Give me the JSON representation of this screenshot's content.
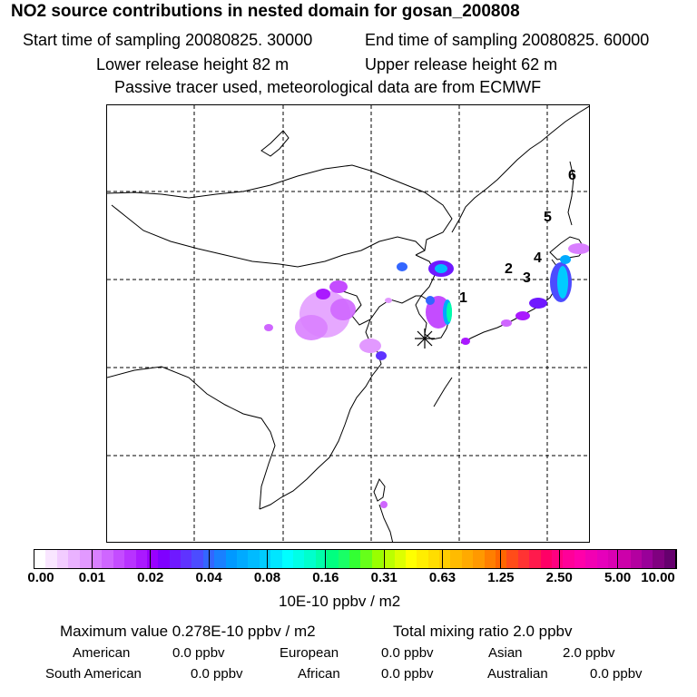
{
  "title": "NO2 source contributions in nested domain for gosan_200808",
  "header": {
    "start_time": "Start time of sampling 20080825. 30000",
    "end_time": "End time of sampling 20080825. 60000",
    "lower_release": "Lower release height   82 m",
    "upper_release": "Upper release height   62 m",
    "note": "Passive tracer used, meteorological data are from ECMWF"
  },
  "map": {
    "receptor_marker": "*",
    "labels": [
      {
        "text": "1",
        "color": "#000000"
      },
      {
        "text": "2",
        "color": "#000000"
      },
      {
        "text": "3",
        "color": "#000000"
      },
      {
        "text": "4",
        "color": "#000000"
      },
      {
        "text": "5",
        "color": "#000000"
      },
      {
        "text": "6",
        "color": "#000000"
      }
    ]
  },
  "colorbar": {
    "ticks": [
      "0.00",
      "0.01",
      "0.02",
      "0.04",
      "0.08",
      "0.16",
      "0.31",
      "0.63",
      "1.25",
      "2.50",
      "5.00",
      "10.00"
    ],
    "colors": [
      "#ffffff",
      "#f9e6ff",
      "#f2ccff",
      "#eab2ff",
      "#e299ff",
      "#d97fff",
      "#cf66ff",
      "#c44cff",
      "#b833ff",
      "#aa19ff",
      "#9900ff",
      "#7f00ff",
      "#6f19ff",
      "#5f33ff",
      "#4c4cff",
      "#3366ff",
      "#1980ff",
      "#0099ff",
      "#00aaff",
      "#00bbff",
      "#00ccff",
      "#00e6ff",
      "#00ffff",
      "#00ffe6",
      "#00ffcc",
      "#00ffaa",
      "#00ff80",
      "#19ff66",
      "#33ff33",
      "#66ff19",
      "#99ff00",
      "#bbff00",
      "#ddff00",
      "#ffff00",
      "#ffee00",
      "#ffdd00",
      "#ffcc00",
      "#ffbb00",
      "#ffaa00",
      "#ff9900",
      "#ff7f00",
      "#ff6600",
      "#ff4c19",
      "#ff3333",
      "#ff1a4c",
      "#ff0066",
      "#ff0080",
      "#ff0099",
      "#ff00aa",
      "#f200b3",
      "#e600bb",
      "#d900b3",
      "#cc00aa",
      "#b300a0",
      "#990099",
      "#800080",
      "#66006e"
    ],
    "units": "10E-10 ppbv / m2"
  },
  "stats": {
    "max_value": "Maximum value  0.278E-10 ppbv / m2",
    "total_mixing": "Total mixing ratio       2.0 ppbv",
    "regions": [
      {
        "name": "American",
        "value": "0.0 ppbv"
      },
      {
        "name": "European",
        "value": "0.0 ppbv"
      },
      {
        "name": "Asian",
        "value": "2.0 ppbv"
      },
      {
        "name": "South American",
        "value": "0.0 ppbv"
      },
      {
        "name": "African",
        "value": "0.0 ppbv"
      },
      {
        "name": "Australian",
        "value": "0.0 ppbv"
      }
    ]
  }
}
